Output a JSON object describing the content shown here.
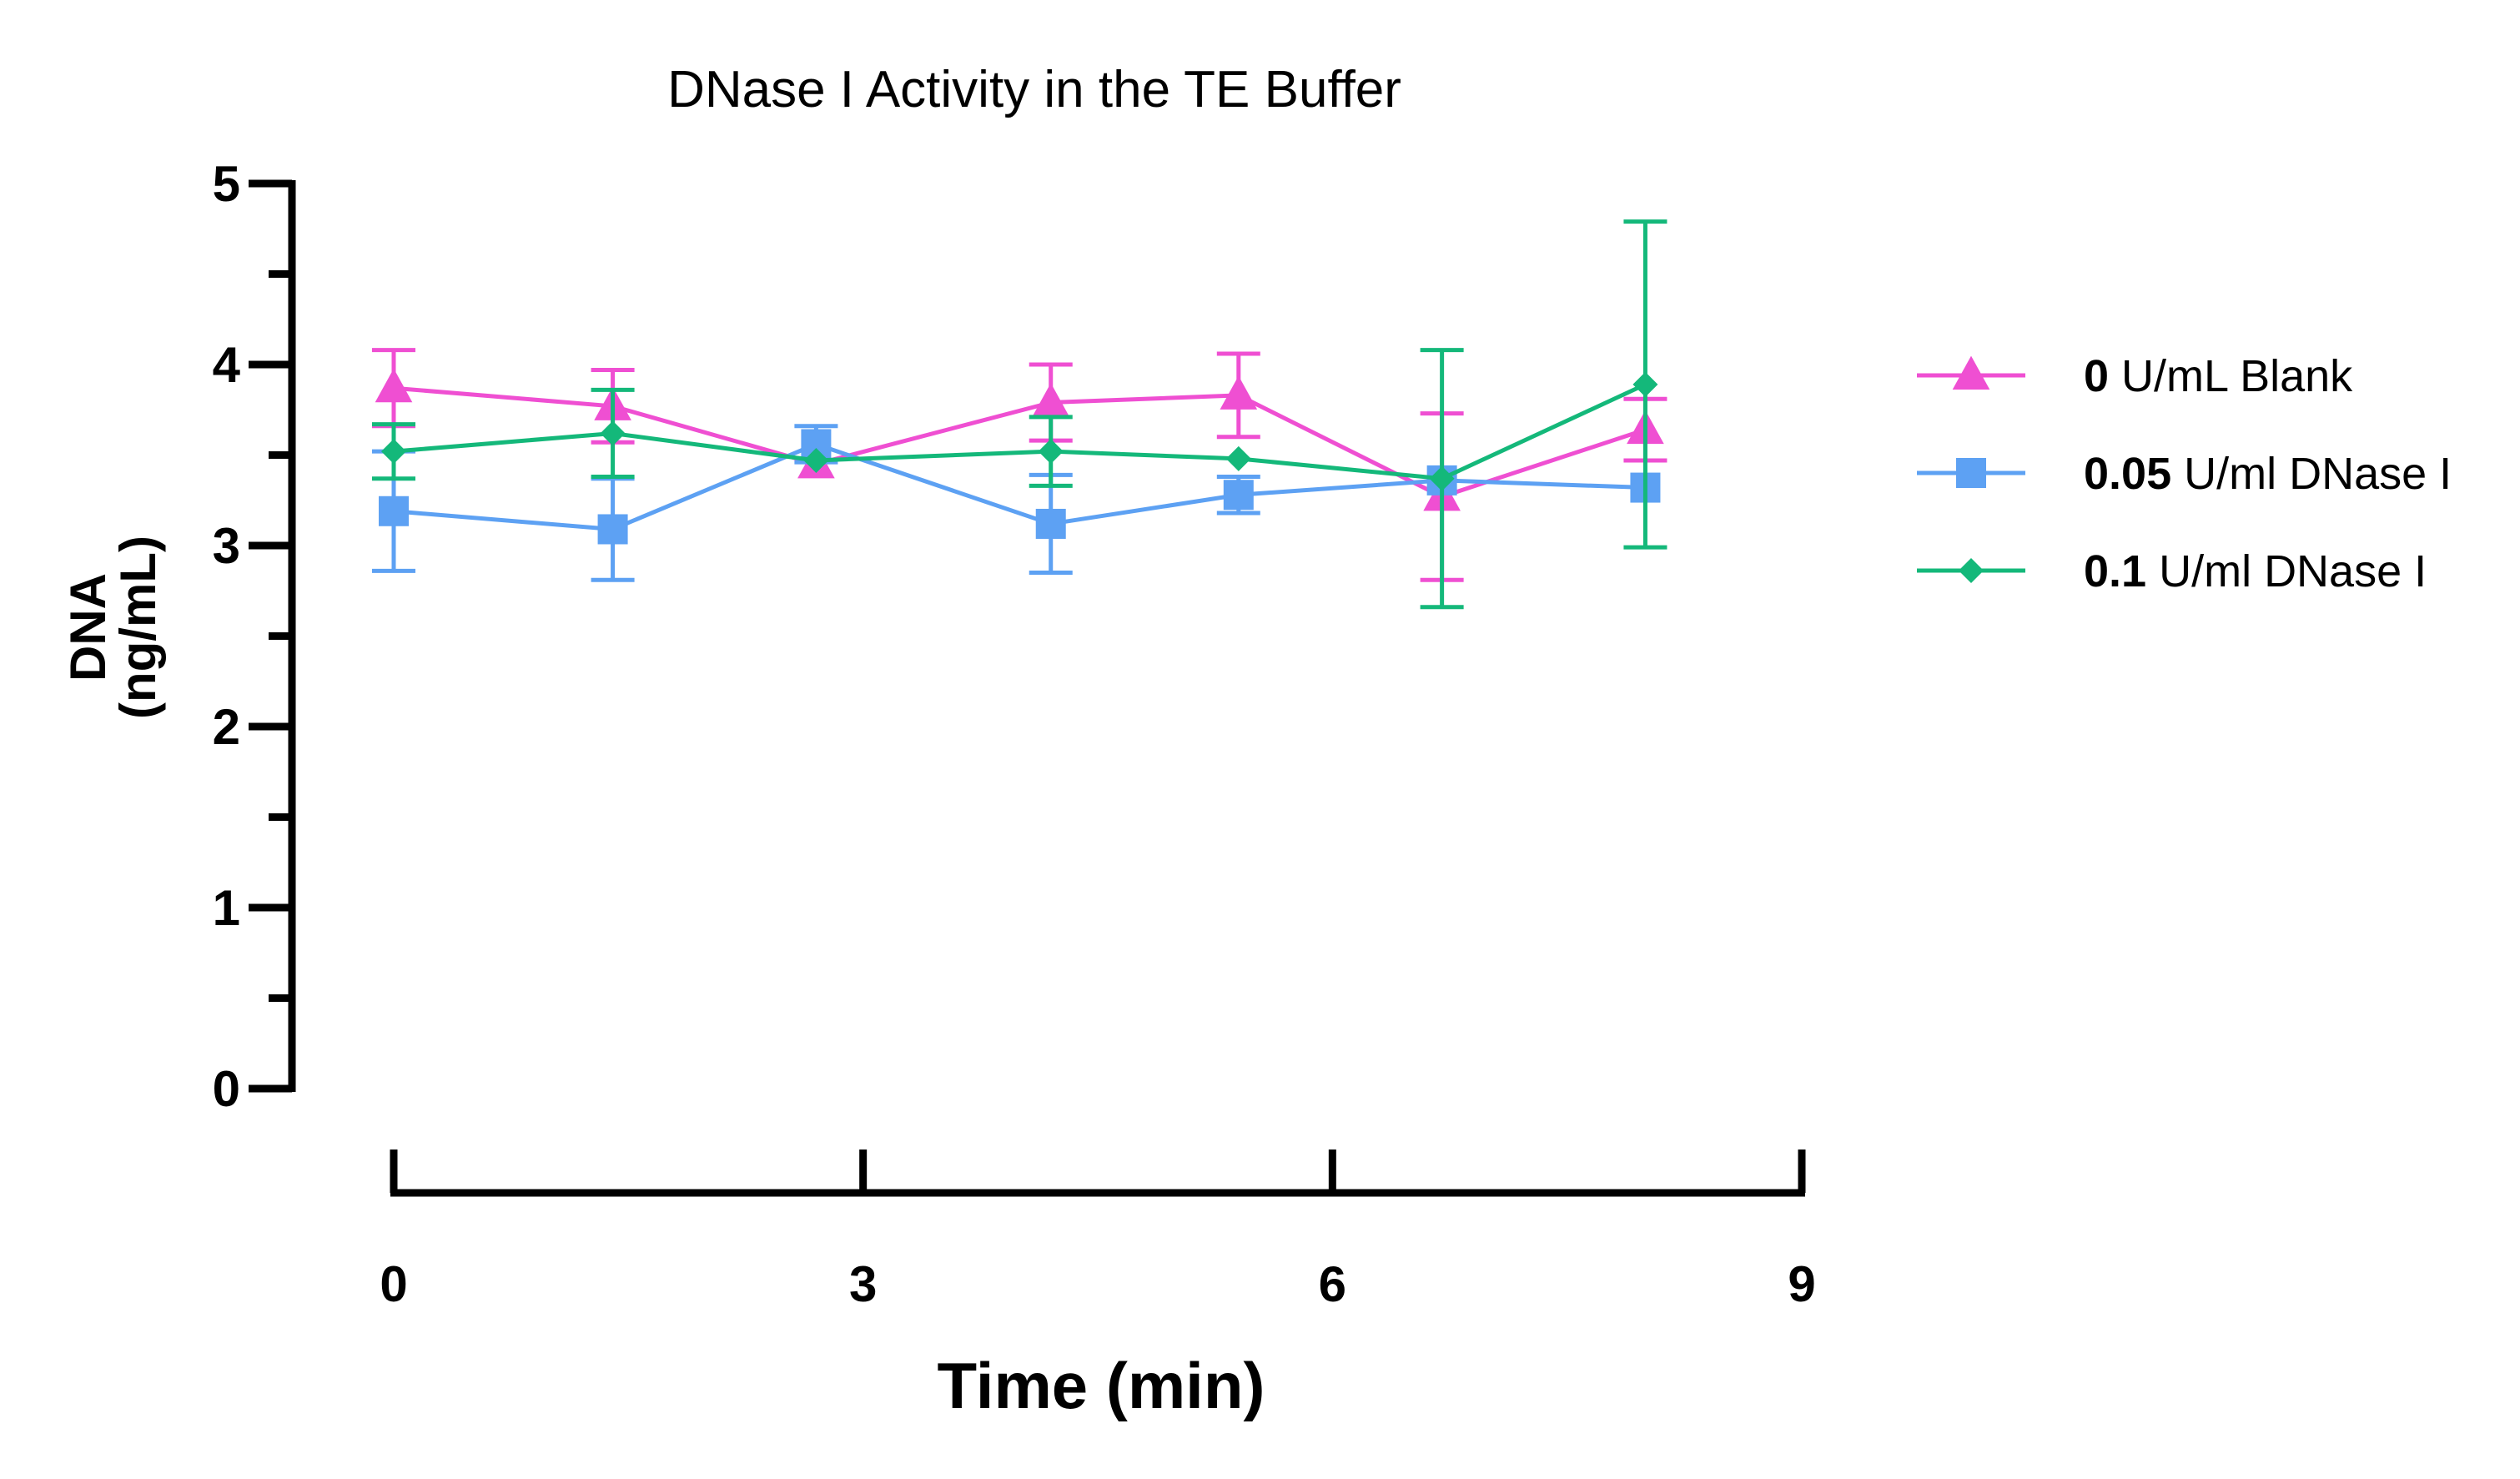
{
  "chart_data": {
    "type": "line",
    "title": "DNase I  Activity in the TE Buffer",
    "xlabel": "Time (min)",
    "ylabel_line1": "DNA",
    "ylabel_line2": "(ng/mL)",
    "xlim": [
      0,
      9
    ],
    "ylim": [
      0,
      5
    ],
    "x_ticks": [
      "0",
      "3",
      "6",
      "9"
    ],
    "y_ticks": [
      "0",
      "1",
      "2",
      "3",
      "4",
      "5"
    ],
    "x_minor_per_major": 0,
    "y_minor_per_major": 1,
    "grid": false,
    "legend_position": "right",
    "x": [
      0,
      1.4,
      2.7,
      4.2,
      5.4,
      6.7,
      8.0
    ],
    "series": [
      {
        "name_bold": "0",
        "name_rest": " U/mL Blank",
        "color": "#EF4FD2",
        "marker": "triangle",
        "values": [
          3.87,
          3.77,
          3.45,
          3.79,
          3.83,
          3.27,
          3.64
        ],
        "errors": [
          0.21,
          0.2,
          0.0,
          0.21,
          0.23,
          0.46,
          0.17
        ]
      },
      {
        "name_bold": "0.05",
        "name_rest": " U/ml DNase I",
        "color": "#5DA1F3",
        "marker": "square",
        "values": [
          3.19,
          3.09,
          3.56,
          3.12,
          3.28,
          3.36,
          3.32
        ],
        "errors": [
          0.33,
          0.28,
          0.1,
          0.27,
          0.1,
          0.0,
          0.0
        ]
      },
      {
        "name_bold": "0.1",
        "name_rest": " U/ml DNase I",
        "color": "#14B87A",
        "marker": "diamond",
        "values": [
          3.52,
          3.62,
          3.47,
          3.52,
          3.48,
          3.37,
          3.89
        ],
        "errors": [
          0.15,
          0.24,
          0.0,
          0.19,
          0.0,
          0.71,
          0.9
        ]
      }
    ]
  }
}
